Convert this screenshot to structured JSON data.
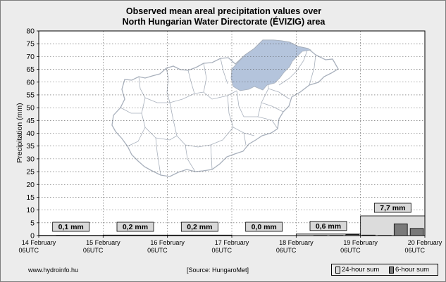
{
  "header": {
    "title_line1": "Observed mean areal precipitation values over",
    "title_line2": "North Hungarian Water Directorate (ÉVIZIG) area"
  },
  "footer": {
    "site": "www.hydroinfo.hu",
    "source": "[Source: HungaroMet]"
  },
  "legend": {
    "sum24_label": "24-hour sum",
    "sum6_label": "6-hour sum"
  },
  "colors": {
    "bar24": "#dcdcdc",
    "bar6": "#7a7a7a",
    "map_fill": "#b4c4dc",
    "map_outline": "#a8b0bc",
    "plot_bg": "#ffffff"
  },
  "chart_data": {
    "type": "bar",
    "ylabel": "Precipitation (mm)",
    "ylim": [
      0,
      80
    ],
    "yticks": [
      0,
      5,
      10,
      15,
      20,
      25,
      30,
      35,
      40,
      45,
      50,
      55,
      60,
      65,
      70,
      75,
      80
    ],
    "grid": true,
    "x_ticks": [
      {
        "line1": "14 February",
        "line2": "06UTC"
      },
      {
        "line1": "15 February",
        "line2": "06UTC"
      },
      {
        "line1": "16 February",
        "line2": "06UTC"
      },
      {
        "line1": "17 February",
        "line2": "06UTC"
      },
      {
        "line1": "18 February",
        "line2": "06UTC"
      },
      {
        "line1": "19 February",
        "line2": "06UTC"
      },
      {
        "line1": "20 February",
        "line2": "06UTC"
      }
    ],
    "series": [
      {
        "name": "24-hour sum",
        "values": [
          0.1,
          0.2,
          0.2,
          0.0,
          0.6,
          7.7
        ],
        "labels": [
          "0,1 mm",
          "0,2 mm",
          "0,2 mm",
          "0,0 mm",
          "0,6 mm",
          "7,7 mm"
        ]
      },
      {
        "name": "6-hour sum",
        "values": [
          0.0,
          0.1,
          0.0,
          0.0,
          0.0,
          0.0,
          0.0,
          0.0,
          0.1,
          0.0,
          0.0,
          0.1,
          0.0,
          0.0,
          0.0,
          0.0,
          0.0,
          0.1,
          0.1,
          0.4,
          0.2,
          0.1,
          4.6,
          2.8
        ]
      }
    ]
  }
}
